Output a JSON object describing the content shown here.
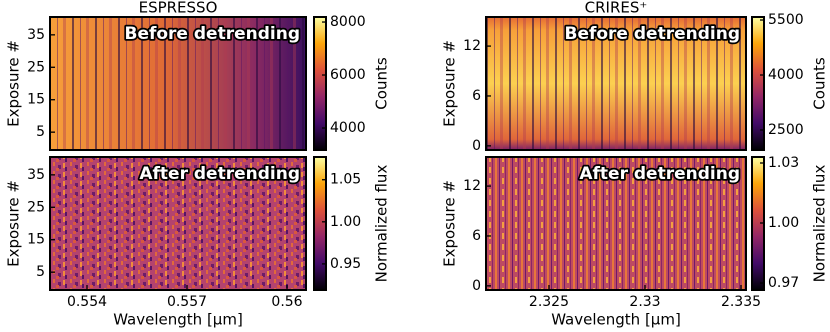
{
  "chart_data": [
    {
      "type": "heatmap",
      "title": "ESPRESSO",
      "annotation": "Before detrending",
      "ylabel": "Exposure #",
      "xlim": [
        0.55289,
        0.56057
      ],
      "ylim": [
        -0.5,
        40.5
      ],
      "yticks": [
        5,
        15,
        25,
        35
      ],
      "colorbar": {
        "label": "Counts",
        "lim": [
          3170,
          8190
        ],
        "ticks": [
          4000,
          6000,
          8000
        ]
      }
    },
    {
      "type": "heatmap",
      "annotation": "After detrending",
      "ylabel": "Exposure #",
      "xlabel": "Wavelength [µm]",
      "xlim": [
        0.55289,
        0.56057
      ],
      "xticks": [
        0.554,
        0.557,
        0.56
      ],
      "ylim": [
        -0.5,
        40.5
      ],
      "yticks": [
        5,
        15,
        25,
        35
      ],
      "colorbar": {
        "label": "Normalized flux",
        "lim": [
          0.919,
          1.077
        ],
        "ticks": [
          0.95,
          {
            "value": 1,
            "label": "1.00"
          },
          1.05
        ]
      }
    },
    {
      "type": "heatmap",
      "title": "CRIRES⁺",
      "annotation": "Before detrending",
      "ylabel": "Exposure #",
      "xlim": [
        2.32172,
        2.33526
      ],
      "ylim": [
        -0.5,
        15.5
      ],
      "yticks": [
        0,
        6,
        12
      ],
      "colorbar": {
        "label": "Counts",
        "lim": [
          1955,
          5582
        ],
        "ticks": [
          2500,
          4000,
          5500
        ]
      }
    },
    {
      "type": "heatmap",
      "annotation": "After detrending",
      "ylabel": "Exposure #",
      "xlabel": "Wavelength [µm]",
      "xlim": [
        2.32172,
        2.33526
      ],
      "xticks": [
        2.325,
        2.33,
        2.335
      ],
      "ylim": [
        -0.5,
        15.5
      ],
      "yticks": [
        0,
        6,
        12
      ],
      "colorbar": {
        "label": "Normalized flux",
        "lim": [
          0.9665,
          1.033
        ],
        "ticks": [
          0.97,
          {
            "value": 1,
            "label": "1.00"
          },
          1.03
        ]
      }
    }
  ]
}
